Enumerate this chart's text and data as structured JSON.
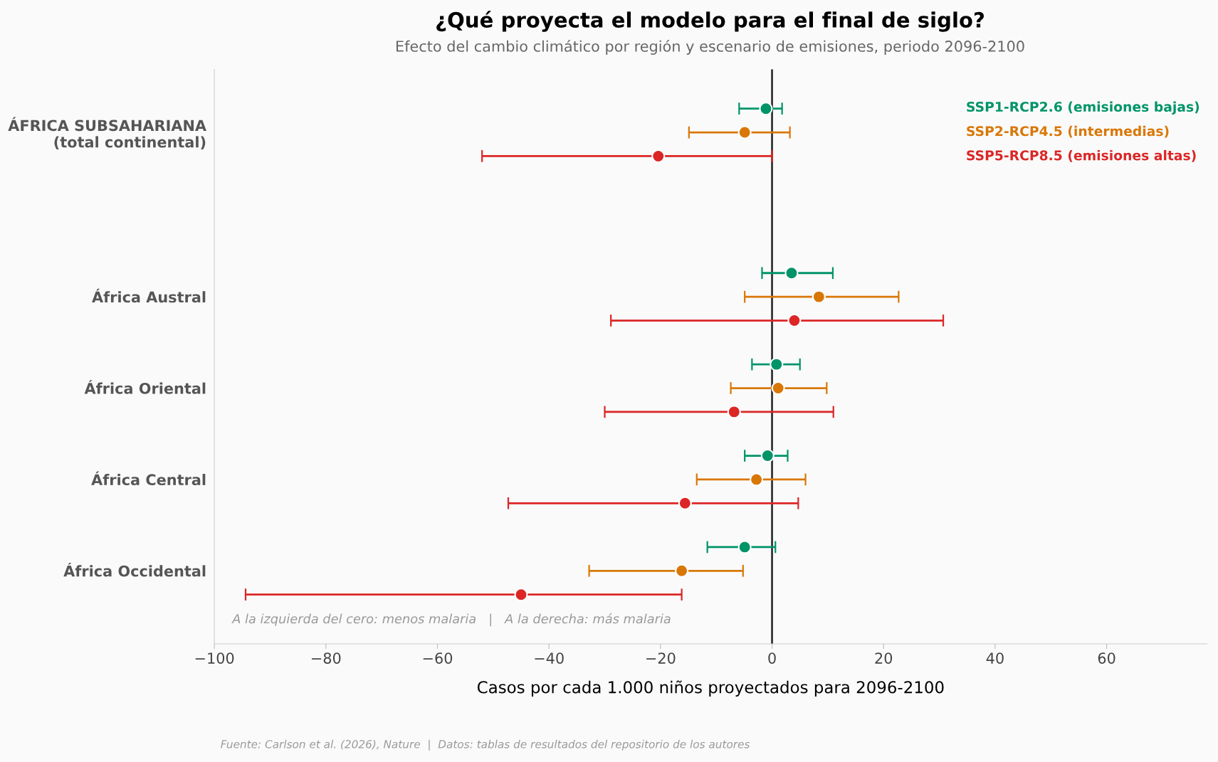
{
  "chart_data": {
    "type": "scatter",
    "orientation": "horizontal",
    "title": "¿Qué proyecta el modelo para el final de siglo?",
    "subtitle": "Efecto del cambio climático por región y escenario de emisiones, periodo 2096-2100",
    "xlabel": "Casos por cada 1.000 niños proyectados para 2096-2100",
    "categories": [
      "ÁFRICA SUBSAHARIANA\n(total continental)",
      "África Austral",
      "África Oriental",
      "África Central",
      "África Occidental"
    ],
    "series": [
      {
        "name": "SSP1-RCP2.6 (emisiones bajas)",
        "color": "#009468",
        "values": [
          -1.1,
          3.5,
          0.8,
          -0.8,
          -4.9
        ],
        "errors": [
          [
            -5.9,
            1.8
          ],
          [
            -1.8,
            10.9
          ],
          [
            -3.6,
            5.0
          ],
          [
            -4.9,
            2.8
          ],
          [
            -11.6,
            0.6
          ]
        ]
      },
      {
        "name": "SSP2-RCP4.5 (intermedias)",
        "color": "#d97706",
        "values": [
          -4.9,
          8.4,
          1.1,
          -2.8,
          -16.2
        ],
        "errors": [
          [
            -14.9,
            3.2
          ],
          [
            -4.9,
            22.7
          ],
          [
            -7.4,
            9.8
          ],
          [
            -13.5,
            6.0
          ],
          [
            -32.8,
            -5.2
          ]
        ]
      },
      {
        "name": "SSP5-RCP8.5 (emisiones altas)",
        "color": "#dc2626",
        "values": [
          -20.4,
          4.0,
          -6.8,
          -15.6,
          -45.0
        ],
        "errors": [
          [
            -52.0,
            0.0
          ],
          [
            -28.9,
            30.7
          ],
          [
            -30.0,
            11.0
          ],
          [
            -47.3,
            4.7
          ],
          [
            -94.4,
            -16.2
          ]
        ]
      }
    ],
    "xlim": [
      -100,
      78
    ],
    "xticks": [
      {
        "value": -100,
        "label": "−100"
      },
      {
        "value": -80,
        "label": "−80"
      },
      {
        "value": -60,
        "label": "−60"
      },
      {
        "value": -40,
        "label": "−40"
      },
      {
        "value": -20,
        "label": "−20"
      },
      0,
      20,
      40,
      60
    ],
    "ref_lines": [
      {
        "axis": "x",
        "value": 0,
        "color": "#333333"
      }
    ],
    "annotations": [
      "A la izquierda del cero: menos malaria   |   A la derecha: más malaria",
      "Fuente: Carlson et al. (2026), Nature  |  Datos: tablas de resultados del repositorio de los autores"
    ],
    "marker": "circle",
    "legend": "top right",
    "grid": false
  }
}
